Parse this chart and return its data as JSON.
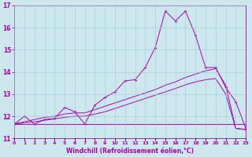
{
  "xlabel": "Windchill (Refroidissement éolien,°C)",
  "background_color": "#cce8ee",
  "grid_color": "#99ccdd",
  "line_color": "#aa00aa",
  "hours": [
    0,
    1,
    2,
    3,
    4,
    5,
    6,
    7,
    8,
    9,
    10,
    11,
    12,
    13,
    14,
    15,
    16,
    17,
    18,
    19,
    20,
    21,
    22,
    23
  ],
  "ylim": [
    11,
    17
  ],
  "yticks": [
    11,
    12,
    13,
    14,
    15,
    16,
    17
  ],
  "line1_marked": [
    11.65,
    12.0,
    11.65,
    11.85,
    11.9,
    12.4,
    12.2,
    11.65,
    12.5,
    12.85,
    13.1,
    13.6,
    13.65,
    14.2,
    15.1,
    16.75,
    16.3,
    16.75,
    15.65,
    14.2,
    14.2,
    13.3,
    12.65,
    11.45
  ],
  "line2_smooth": [
    11.65,
    11.75,
    11.85,
    11.95,
    12.0,
    12.1,
    12.15,
    12.15,
    12.3,
    12.45,
    12.6,
    12.75,
    12.9,
    13.05,
    13.2,
    13.4,
    13.55,
    13.75,
    13.9,
    14.05,
    14.15,
    13.4,
    11.45,
    11.4
  ],
  "line3_smooth": [
    11.65,
    11.7,
    11.75,
    11.82,
    11.88,
    11.95,
    12.0,
    12.0,
    12.1,
    12.2,
    12.35,
    12.5,
    12.65,
    12.8,
    12.95,
    13.1,
    13.25,
    13.42,
    13.55,
    13.65,
    13.7,
    13.0,
    11.45,
    11.4
  ],
  "line4_flat": [
    11.65,
    11.65,
    11.65,
    11.65,
    11.65,
    11.65,
    11.65,
    11.65,
    11.65,
    11.65,
    11.65,
    11.65,
    11.65,
    11.65,
    11.65,
    11.65,
    11.65,
    11.65,
    11.65,
    11.65,
    11.65,
    11.65,
    11.65,
    11.65
  ]
}
